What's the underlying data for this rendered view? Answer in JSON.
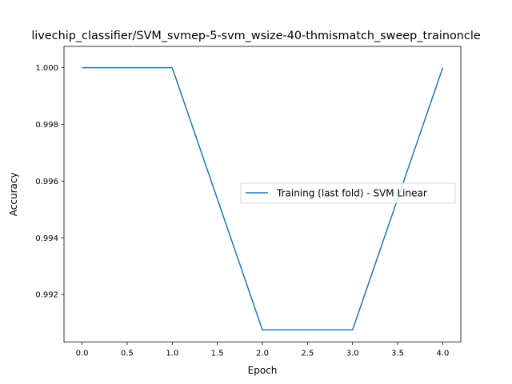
{
  "chart_data": {
    "type": "line",
    "title": "livechip_classifier/SVM_svmep-5-svm_wsize-40-thmismatch_sweep_trainoncle",
    "xlabel": "Epoch",
    "ylabel": "Accuracy",
    "xlim": [
      -0.2,
      4.2
    ],
    "ylim": [
      0.99032,
      1.00075
    ],
    "x_ticks": [
      0.0,
      0.5,
      1.0,
      1.5,
      2.0,
      2.5,
      3.0,
      3.5,
      4.0
    ],
    "x_tick_labels": [
      "0.0",
      "0.5",
      "1.0",
      "1.5",
      "2.0",
      "2.5",
      "3.0",
      "3.5",
      "4.0"
    ],
    "y_ticks": [
      0.992,
      0.994,
      0.996,
      0.998,
      1.0
    ],
    "y_tick_labels": [
      "0.992",
      "0.994",
      "0.996",
      "0.998",
      "1.000"
    ],
    "grid": false,
    "legend_position": "center-right",
    "series": [
      {
        "name": "Training (last fold) - SVM Linear",
        "color": "#1f77b4",
        "x": [
          0,
          1,
          2,
          3,
          4
        ],
        "y": [
          1.0,
          1.0,
          0.99075,
          0.99075,
          1.0
        ]
      }
    ]
  }
}
